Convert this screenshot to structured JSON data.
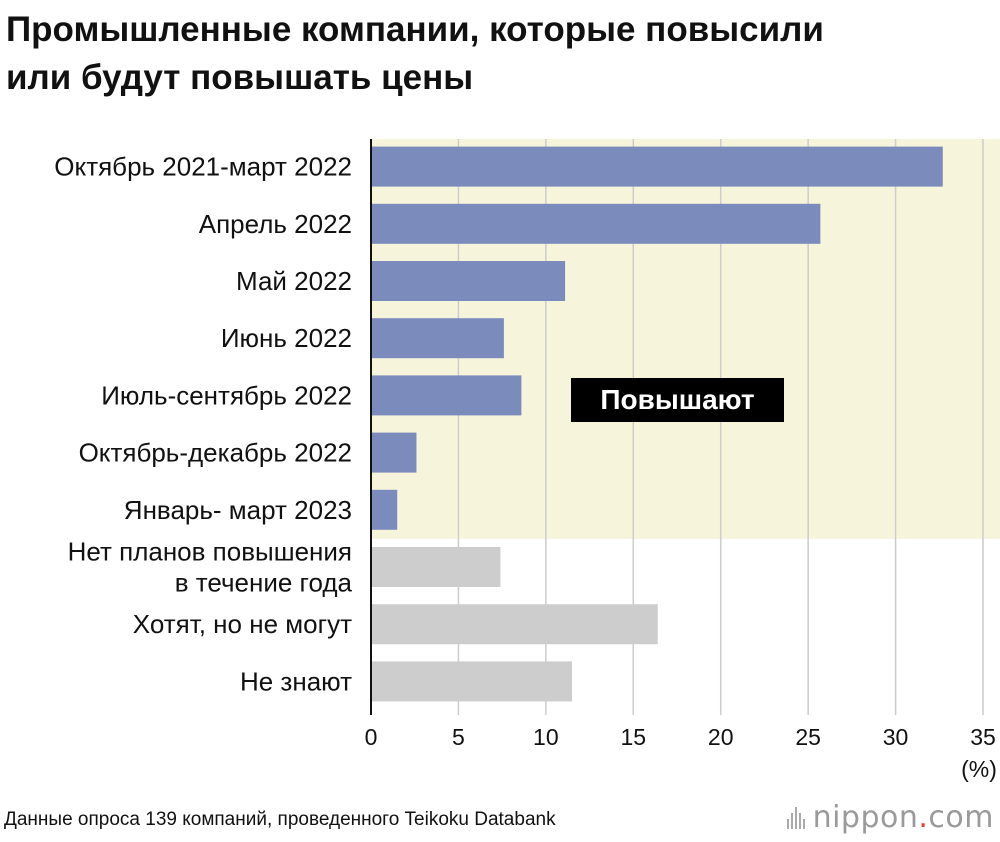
{
  "title_lines": [
    "Промышленные компании, которые повысили",
    "или будут повышать цены"
  ],
  "chart_data": {
    "type": "bar",
    "orientation": "horizontal",
    "categories": [
      "Октябрь 2021-март 2022",
      "Апрель 2022",
      "Май 2022",
      "Июнь 2022",
      "Июль-сентябрь 2022",
      "Октябрь-декабрь 2022",
      "Январь- март 2023",
      "Нет планов повышения\nв течение года",
      "Хотят, но не могут",
      "Не знают"
    ],
    "values": [
      32.7,
      25.7,
      11.1,
      7.6,
      8.6,
      2.6,
      1.5,
      7.4,
      16.4,
      11.5
    ],
    "groups": [
      "raise",
      "raise",
      "raise",
      "raise",
      "raise",
      "raise",
      "raise",
      "other",
      "other",
      "other"
    ],
    "highlight_label": "Повышают",
    "xlim": [
      0,
      35
    ],
    "xticks": [
      0,
      5,
      10,
      15,
      20,
      25,
      30,
      35
    ],
    "unit_label": "(%)",
    "grid": true,
    "colors": {
      "raise": "#7b8bbc",
      "other": "#cdcdcd",
      "highlight_bg": "#f7f4dc",
      "grid": "#cccccc",
      "axis": "#111111",
      "label_box": "#000000",
      "label_text": "#ffffff"
    }
  },
  "footer": {
    "source": "Данные опроса 139 компаний, проведенного Teikoku Databank",
    "logo_name": "nippon",
    "logo_dot": ".",
    "logo_tld": "com"
  }
}
